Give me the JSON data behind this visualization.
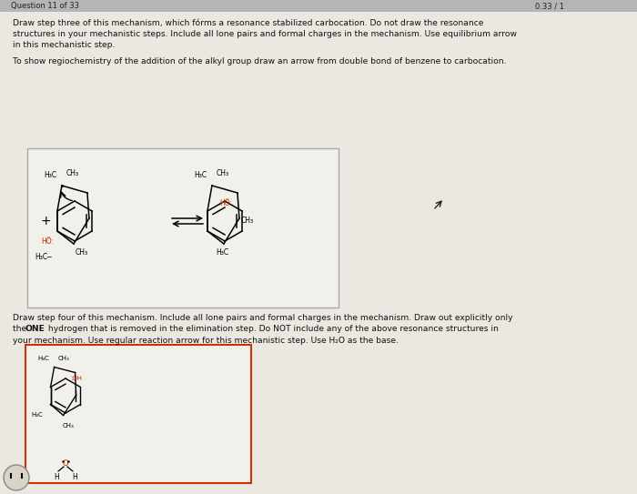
{
  "bg_outer": "#c8c8c8",
  "bg_main": "#eae8e0",
  "box1_fill": "#f2f0ea",
  "box1_edge": "#aaaaaa",
  "box2_fill": "#f2f0ea",
  "box2_edge": "#cc3300",
  "text_col": "#111111",
  "red_col": "#cc2200",
  "header_bar": "#b5b5b5",
  "title1": "Draw step three of this mechanism, which fórms a resonance stabilized carbocation. Do not draw the resonance",
  "title2": "structures in your mechanistic steps. Include all lone pairs and formal charges in the mechanism. Use equilibrium arrow",
  "title3": "in this mechanistic step.",
  "subtitle": "To show regiochemistry of the addition of the alkyl group draw an arrow from double bond of benzene to carbocation.",
  "s4t1": "Draw step four of this mechanism. Include all lone pairs and formal charges in the mechanism. Draw out explicitly only",
  "s4t2a": "the ",
  "s4t2b": "ONE",
  "s4t2c": " hydrogen that is removed in the elimination step. Do NOT include any of the above resonance structures in",
  "s4t3": "your mechanism. Use regular reaction arrow for this mechanistic step. Use H₂O as the base.",
  "hdr_left": "Question 11 of 33",
  "hdr_right": "0.33 / 1"
}
